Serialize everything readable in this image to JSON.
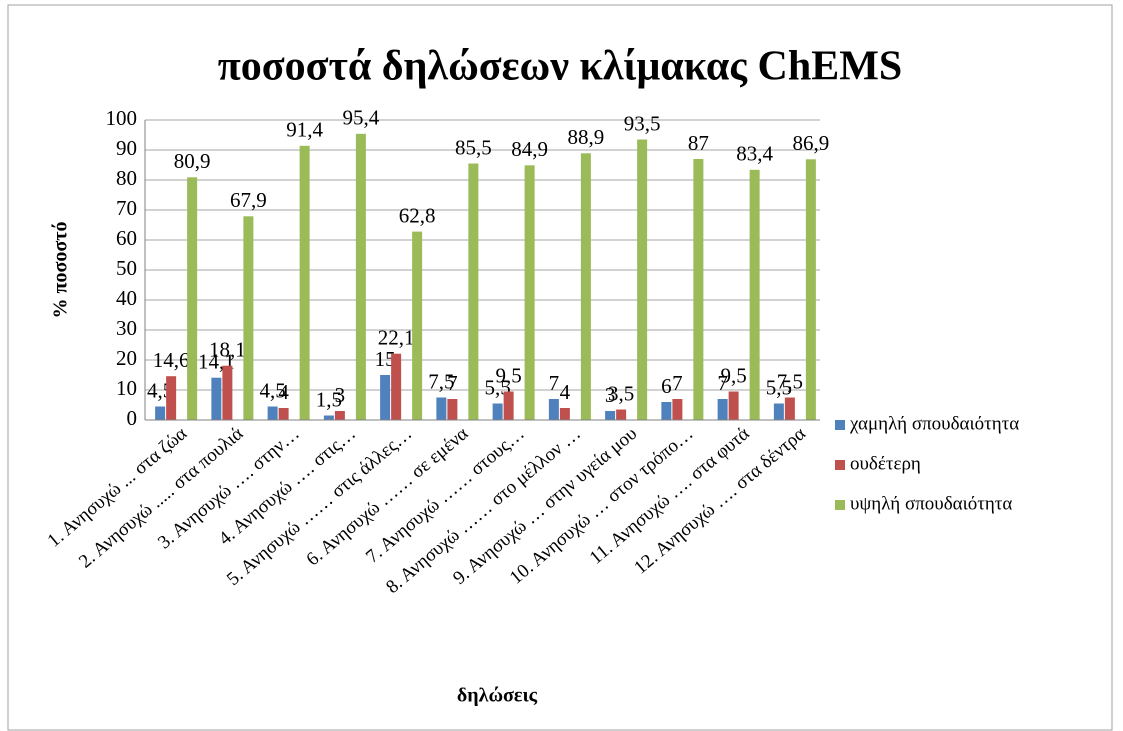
{
  "chart_data": {
    "type": "bar",
    "title": "ποσοστά δηλώσεων κλίμακας ChEMS",
    "y_axis_label": "% ποσοστό",
    "x_axis_label": "δηλώσεις",
    "categories": [
      "1. Ανησυχώ  ... στα ζώα",
      "2. Ανησυχώ ..... στα πουλιά",
      "3. Ανησυχώ …. στην…",
      "4. Ανησυχώ …. στις…",
      "5. Ανησυχώ …… στις άλλες…",
      "6. Ανησυχώ …… σε εμένα",
      "7. Ανησυχώ …… στους…",
      "8. Ανησυχώ …… στο μέλλον …",
      "9. Ανησυχώ … στην υγεία μου",
      "10. Ανησυχώ … στον τρόπο…",
      "11. Ανησυχώ …. στα φυτά",
      "12. Ανησυχώ …. στα δέντρα"
    ],
    "series": [
      {
        "name": "χαμηλή σπουδαιότητα",
        "color": "#4f81bd",
        "values": [
          4.5,
          14.1,
          4.5,
          1.5,
          15,
          7.5,
          5.5,
          7,
          3,
          6,
          7,
          5.5
        ],
        "value_labels": [
          "4,5",
          "14,1",
          "4,5",
          "1,5",
          "15",
          "7,5",
          "5,5",
          "7",
          "3",
          "6",
          "7",
          "5,5"
        ]
      },
      {
        "name": "ουδέτερη",
        "color": "#c0504d",
        "values": [
          14.6,
          18.1,
          4,
          3,
          22.1,
          7,
          9.5,
          4,
          3.5,
          7,
          9.5,
          7.5
        ],
        "value_labels": [
          "14,6",
          "18,1",
          "4",
          "3",
          "22,1",
          "7",
          "9,5",
          "4",
          "3,5",
          "7",
          "9,5",
          "7,5"
        ]
      },
      {
        "name": "υψηλή σπουδαιότητα",
        "color": "#9bbb59",
        "values": [
          80.9,
          67.9,
          91.4,
          95.4,
          62.8,
          85.5,
          84.9,
          88.9,
          93.5,
          87,
          83.4,
          86.9
        ],
        "value_labels": [
          "80,9",
          "67,9",
          "91,4",
          "95,4",
          "62,8",
          "85,5",
          "84,9",
          "88,9",
          "93,5",
          "87",
          "83,4",
          "86,9"
        ]
      }
    ],
    "ylim": [
      0,
      100
    ],
    "yticks": [
      0,
      10,
      20,
      30,
      40,
      50,
      60,
      70,
      80,
      90,
      100
    ],
    "grid": true,
    "legend": "right"
  }
}
